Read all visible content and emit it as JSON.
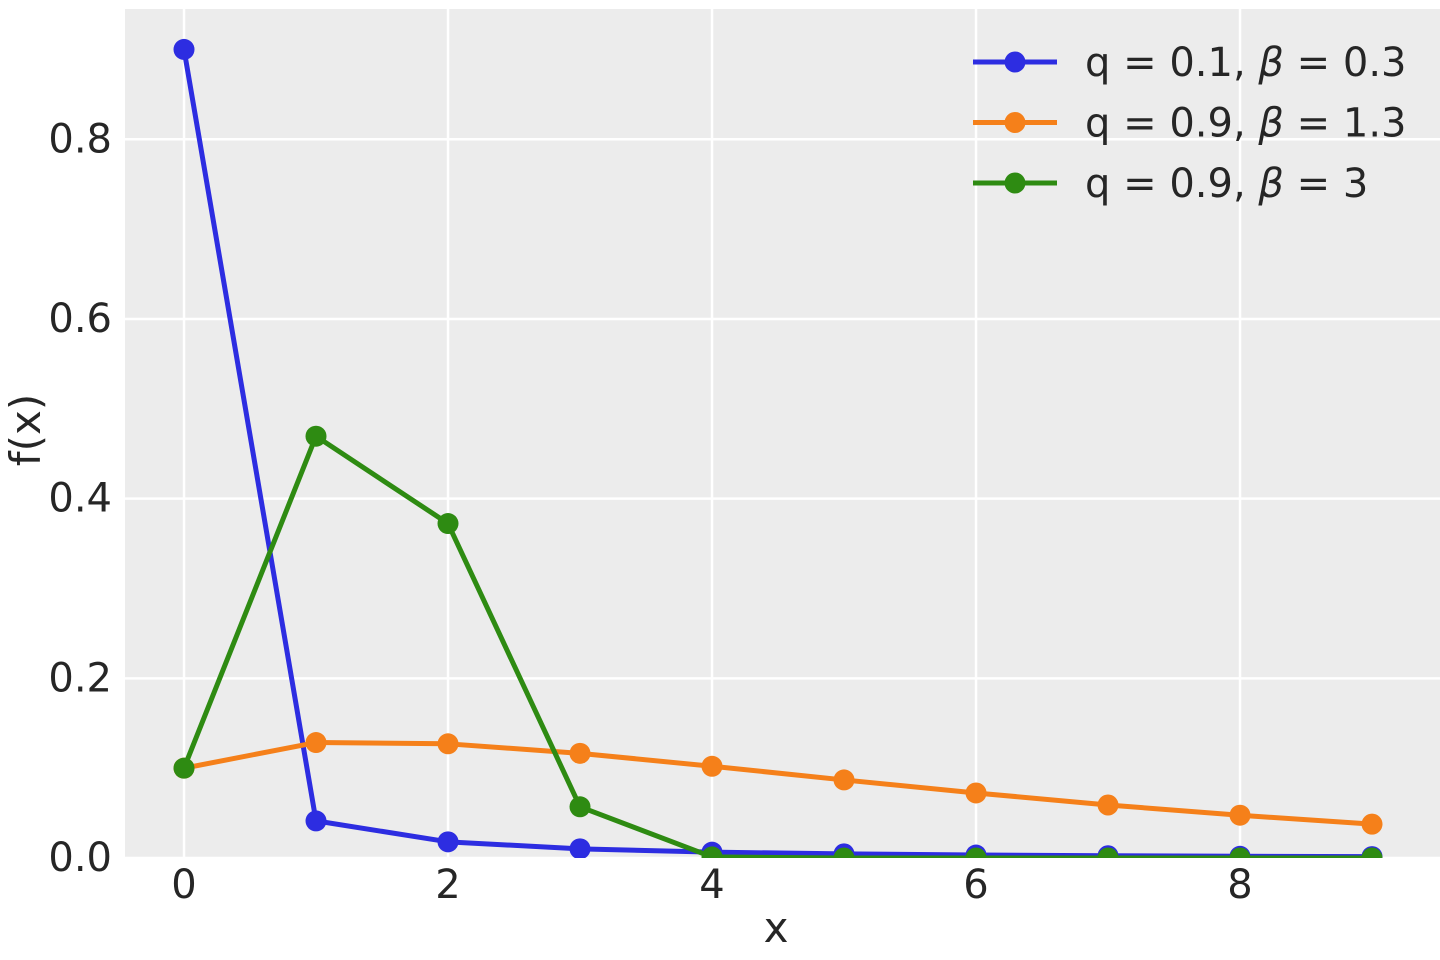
{
  "figure": {
    "background": "#ffffff",
    "plot_background": "#ececec",
    "grid_color": "#ffffff",
    "text_color": "#262626"
  },
  "chart_data": {
    "type": "line",
    "title": "",
    "xlabel": "x",
    "ylabel": "f(x)",
    "x": [
      0,
      1,
      2,
      3,
      4,
      5,
      6,
      7,
      8,
      9
    ],
    "series": [
      {
        "name": "q = 0.1, β = 0.3",
        "color": "#2d2de1",
        "marker": "circle",
        "values": [
          0.9,
          0.0413,
          0.018,
          0.0102,
          0.0065,
          0.0046,
          0.0033,
          0.0025,
          0.0019,
          0.0016
        ]
      },
      {
        "name": "q = 0.9, β = 1.3",
        "color": "#f5801a",
        "marker": "circle",
        "values": [
          0.1,
          0.1285,
          0.1271,
          0.1165,
          0.1021,
          0.0869,
          0.0724,
          0.059,
          0.0476,
          0.0377
        ]
      },
      {
        "name": "q = 0.9, β = 3",
        "color": "#2e8b12",
        "marker": "circle",
        "values": [
          0.1,
          0.4695,
          0.3723,
          0.057,
          0.0012,
          0.0,
          0.0,
          0.0,
          0.0,
          0.0
        ]
      }
    ],
    "xticks": {
      "values": [
        0,
        2,
        4,
        6,
        8
      ],
      "labels": [
        "0",
        "2",
        "4",
        "6",
        "8"
      ]
    },
    "yticks": {
      "values": [
        0.0,
        0.2,
        0.4,
        0.6,
        0.8
      ],
      "labels": [
        "0.0",
        "0.2",
        "0.4",
        "0.6",
        "0.8"
      ]
    },
    "xlim": [
      -0.447,
      9.515
    ],
    "ylim": [
      0,
      0.945
    ],
    "grid": true,
    "legend": {
      "position": "upper right",
      "frame": false
    }
  }
}
